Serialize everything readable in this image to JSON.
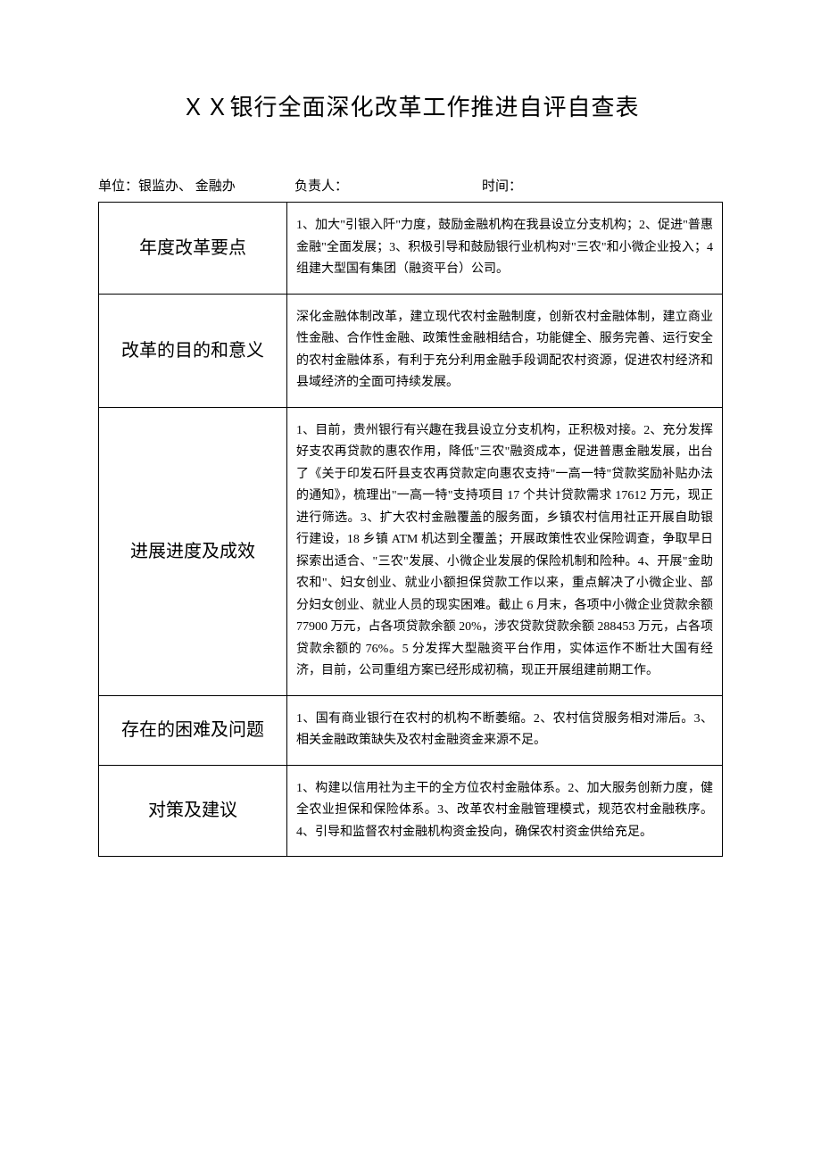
{
  "title": "ＸＸ银行全面深化改革工作推进自评自查表",
  "header": {
    "unit_label": "单位：银监办、  金融办",
    "responsible_label": "负责人：",
    "time_label": "时间："
  },
  "rows": [
    {
      "label": "年度改革要点",
      "content": "1、加大\"引银入阡\"力度，鼓励金融机构在我县设立分支机构；2、促进\"普惠金融\"全面发展；3、积极引导和鼓励银行业机构对\"三农\"和小微企业投入；4 组建大型国有集团（融资平台）公司。"
    },
    {
      "label": "改革的目的和意义",
      "content": "深化金融体制改革，建立现代农村金融制度，创新农村金融体制，建立商业性金融、合作性金融、政策性金融相结合，功能健全、服务完善、运行安全的农村金融体系，有利于充分利用金融手段调配农村资源，促进农村经济和县域经济的全面可持续发展。"
    },
    {
      "label": "进展进度及成效",
      "content": "1、目前，贵州银行有兴趣在我县设立分支机构，正积极对接。2、充分发挥好支农再贷款的惠农作用，降低\"三农\"融资成本，促进普惠金融发展，出台了《关于印发石阡县支农再贷款定向惠农支持\"一高一特\"贷款奖励补贴办法的通知》，梳理出\"一高一特\"支持项目 17 个共计贷款需求 17612 万元，现正进行筛选。3、扩大农村金融覆盖的服务面，乡镇农村信用社正开展自助银行建设，18 乡镇 ATM 机达到全覆盖；开展政策性农业保险调查，争取早日探索出适合、\"三农\"发展、小微企业发展的保险机制和险种。4、开展\"金助农和\"、妇女创业、就业小额担保贷款工作以来，重点解决了小微企业、部分妇女创业、就业人员的现实困难。截止 6 月末，各项中小微企业贷款余额 77900 万元，占各项贷款余额 20%，涉农贷款贷款余额 288453 万元，占各项贷款余额的 76%。5 分发挥大型融资平台作用，实体运作不断壮大国有经济，目前，公司重组方案已经形成初稿，现正开展组建前期工作。"
    },
    {
      "label": "存在的困难及问题",
      "content": "1、国有商业银行在农村的机构不断萎缩。2、农村信贷服务相对滞后。3、相关金融政策缺失及农村金融资金来源不足。"
    },
    {
      "label": "对策及建议",
      "content": "1、构建以信用社为主干的全方位农村金融体系。2、加大服务创新力度，健全农业担保和保险体系。3、改革农村金融管理模式，规范农村金融秩序。4、引导和监督农村金融机构资金投向，确保农村资金供给充足。"
    }
  ]
}
